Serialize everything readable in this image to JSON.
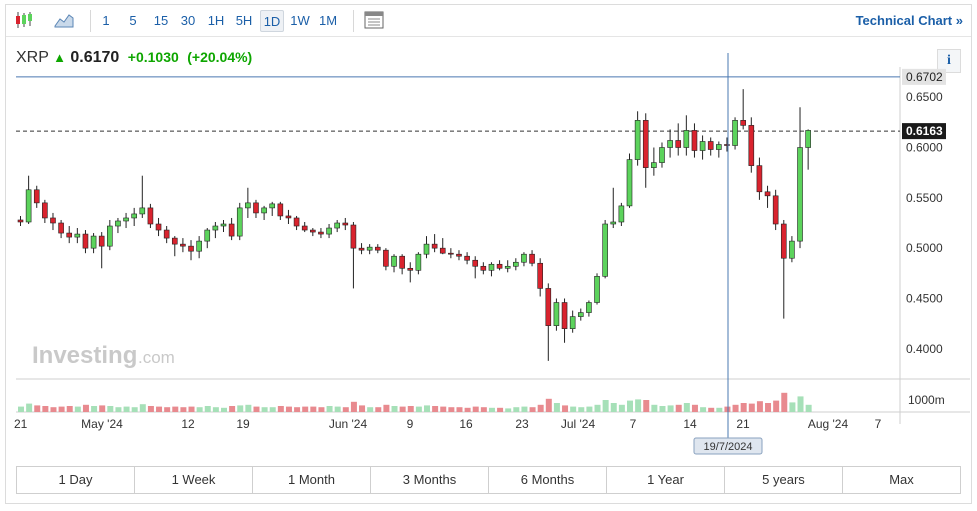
{
  "toolbar": {
    "intervals": [
      "1",
      "5",
      "15",
      "30",
      "1H",
      "5H",
      "1D",
      "1W",
      "1M"
    ],
    "selected": "1D",
    "technical_chart": "Technical Chart",
    "technical_chart_arrow": "»",
    "icons": [
      "candlestick-icon",
      "area-chart-icon",
      "template-icon"
    ]
  },
  "quote": {
    "symbol": "XRP",
    "price": "0.6170",
    "change": "+0.1030",
    "change_pct": "(+20.04%)",
    "up_color": "#0ea600",
    "info_label": "i"
  },
  "price_axis": {
    "ticks": [
      "0.6500",
      "0.6000",
      "0.5500",
      "0.5000",
      "0.4500",
      "0.4000"
    ],
    "hline_label": "0.6702",
    "current_label": "0.6163",
    "volume_label": "1000m"
  },
  "x_axis": {
    "labels": [
      "21",
      "May '24",
      "12",
      "19",
      "Jun '24",
      "9",
      "16",
      "23",
      "Jul '24",
      "7",
      "14",
      "21",
      "Aug '24",
      "7"
    ],
    "crosshair_label": "19/7/2024"
  },
  "watermark": "Investing",
  "watermark_suffix": ".com",
  "ranges": [
    "1 Day",
    "1 Week",
    "1 Month",
    "3 Months",
    "6 Months",
    "1 Year",
    "5 years",
    "Max"
  ],
  "colors": {
    "up": "#5cd35c",
    "down": "#d9232e",
    "vol_up": "#a6e0b8",
    "vol_down": "#e88a8f",
    "blue_line": "#4a78b0"
  },
  "chart_data": {
    "type": "candlestick",
    "ylim": [
      0.37,
      0.68
    ],
    "hline": 0.6702,
    "current": 0.6163,
    "candles": [
      [
        0.528,
        0.532,
        0.522,
        0.526
      ],
      [
        0.526,
        0.572,
        0.524,
        0.558
      ],
      [
        0.558,
        0.562,
        0.54,
        0.545
      ],
      [
        0.545,
        0.548,
        0.525,
        0.53
      ],
      [
        0.53,
        0.535,
        0.518,
        0.525
      ],
      [
        0.525,
        0.528,
        0.51,
        0.515
      ],
      [
        0.515,
        0.522,
        0.505,
        0.511
      ],
      [
        0.511,
        0.52,
        0.505,
        0.514
      ],
      [
        0.514,
        0.518,
        0.495,
        0.5
      ],
      [
        0.5,
        0.515,
        0.495,
        0.512
      ],
      [
        0.512,
        0.516,
        0.48,
        0.502
      ],
      [
        0.502,
        0.528,
        0.498,
        0.522
      ],
      [
        0.522,
        0.53,
        0.515,
        0.527
      ],
      [
        0.527,
        0.535,
        0.52,
        0.53
      ],
      [
        0.53,
        0.54,
        0.522,
        0.534
      ],
      [
        0.534,
        0.572,
        0.53,
        0.54
      ],
      [
        0.54,
        0.544,
        0.52,
        0.524
      ],
      [
        0.524,
        0.53,
        0.512,
        0.518
      ],
      [
        0.518,
        0.522,
        0.505,
        0.51
      ],
      [
        0.51,
        0.512,
        0.492,
        0.504
      ],
      [
        0.504,
        0.51,
        0.496,
        0.502
      ],
      [
        0.502,
        0.508,
        0.488,
        0.497
      ],
      [
        0.497,
        0.512,
        0.49,
        0.507
      ],
      [
        0.507,
        0.52,
        0.5,
        0.518
      ],
      [
        0.518,
        0.526,
        0.51,
        0.522
      ],
      [
        0.522,
        0.528,
        0.516,
        0.524
      ],
      [
        0.524,
        0.53,
        0.508,
        0.512
      ],
      [
        0.512,
        0.545,
        0.508,
        0.54
      ],
      [
        0.54,
        0.56,
        0.53,
        0.545
      ],
      [
        0.545,
        0.548,
        0.53,
        0.535
      ],
      [
        0.535,
        0.542,
        0.528,
        0.54
      ],
      [
        0.54,
        0.546,
        0.532,
        0.544
      ],
      [
        0.544,
        0.546,
        0.528,
        0.532
      ],
      [
        0.532,
        0.538,
        0.524,
        0.53
      ],
      [
        0.53,
        0.532,
        0.518,
        0.522
      ],
      [
        0.522,
        0.526,
        0.516,
        0.518
      ],
      [
        0.518,
        0.52,
        0.512,
        0.516
      ],
      [
        0.516,
        0.52,
        0.51,
        0.514
      ],
      [
        0.514,
        0.524,
        0.51,
        0.52
      ],
      [
        0.52,
        0.528,
        0.516,
        0.525
      ],
      [
        0.525,
        0.53,
        0.518,
        0.523
      ],
      [
        0.523,
        0.526,
        0.46,
        0.5
      ],
      [
        0.5,
        0.505,
        0.494,
        0.498
      ],
      [
        0.498,
        0.504,
        0.494,
        0.501
      ],
      [
        0.501,
        0.504,
        0.495,
        0.498
      ],
      [
        0.498,
        0.5,
        0.478,
        0.482
      ],
      [
        0.482,
        0.494,
        0.476,
        0.492
      ],
      [
        0.492,
        0.494,
        0.474,
        0.48
      ],
      [
        0.48,
        0.486,
        0.466,
        0.478
      ],
      [
        0.478,
        0.496,
        0.474,
        0.494
      ],
      [
        0.494,
        0.512,
        0.49,
        0.504
      ],
      [
        0.504,
        0.514,
        0.496,
        0.5
      ],
      [
        0.5,
        0.51,
        0.494,
        0.495
      ],
      [
        0.495,
        0.5,
        0.49,
        0.494
      ],
      [
        0.494,
        0.498,
        0.488,
        0.492
      ],
      [
        0.492,
        0.496,
        0.484,
        0.488
      ],
      [
        0.488,
        0.492,
        0.47,
        0.482
      ],
      [
        0.482,
        0.486,
        0.474,
        0.478
      ],
      [
        0.478,
        0.486,
        0.472,
        0.484
      ],
      [
        0.484,
        0.488,
        0.478,
        0.48
      ],
      [
        0.48,
        0.488,
        0.476,
        0.482
      ],
      [
        0.482,
        0.49,
        0.478,
        0.486
      ],
      [
        0.486,
        0.496,
        0.482,
        0.494
      ],
      [
        0.494,
        0.498,
        0.482,
        0.485
      ],
      [
        0.485,
        0.49,
        0.452,
        0.46
      ],
      [
        0.46,
        0.465,
        0.388,
        0.423
      ],
      [
        0.423,
        0.45,
        0.418,
        0.446
      ],
      [
        0.446,
        0.45,
        0.406,
        0.42
      ],
      [
        0.42,
        0.438,
        0.416,
        0.432
      ],
      [
        0.432,
        0.44,
        0.428,
        0.436
      ],
      [
        0.436,
        0.448,
        0.432,
        0.446
      ],
      [
        0.446,
        0.475,
        0.444,
        0.472
      ],
      [
        0.472,
        0.528,
        0.47,
        0.524
      ],
      [
        0.524,
        0.56,
        0.52,
        0.526
      ],
      [
        0.526,
        0.545,
        0.522,
        0.542
      ],
      [
        0.542,
        0.594,
        0.54,
        0.588
      ],
      [
        0.588,
        0.636,
        0.582,
        0.627
      ],
      [
        0.627,
        0.634,
        0.56,
        0.58
      ],
      [
        0.58,
        0.6,
        0.572,
        0.585
      ],
      [
        0.585,
        0.605,
        0.58,
        0.6
      ],
      [
        0.6,
        0.618,
        0.59,
        0.607
      ],
      [
        0.607,
        0.624,
        0.592,
        0.6
      ],
      [
        0.6,
        0.632,
        0.592,
        0.617
      ],
      [
        0.617,
        0.624,
        0.59,
        0.597
      ],
      [
        0.597,
        0.612,
        0.588,
        0.606
      ],
      [
        0.606,
        0.61,
        0.592,
        0.598
      ],
      [
        0.598,
        0.606,
        0.59,
        0.603
      ],
      [
        0.603,
        0.61,
        0.596,
        0.602
      ],
      [
        0.602,
        0.63,
        0.598,
        0.627
      ],
      [
        0.627,
        0.658,
        0.618,
        0.622
      ],
      [
        0.622,
        0.63,
        0.575,
        0.582
      ],
      [
        0.582,
        0.59,
        0.548,
        0.556
      ],
      [
        0.556,
        0.562,
        0.54,
        0.552
      ],
      [
        0.552,
        0.558,
        0.518,
        0.524
      ],
      [
        0.524,
        0.528,
        0.43,
        0.49
      ],
      [
        0.49,
        0.512,
        0.486,
        0.507
      ],
      [
        0.507,
        0.64,
        0.5,
        0.6
      ],
      [
        0.6,
        0.618,
        0.578,
        0.617
      ]
    ],
    "volumes": [
      [
        0.45,
        0
      ],
      [
        0.7,
        0
      ],
      [
        0.55,
        1
      ],
      [
        0.5,
        1
      ],
      [
        0.4,
        1
      ],
      [
        0.45,
        1
      ],
      [
        0.5,
        1
      ],
      [
        0.45,
        0
      ],
      [
        0.6,
        1
      ],
      [
        0.5,
        0
      ],
      [
        0.55,
        1
      ],
      [
        0.5,
        0
      ],
      [
        0.4,
        0
      ],
      [
        0.45,
        0
      ],
      [
        0.4,
        0
      ],
      [
        0.65,
        0
      ],
      [
        0.5,
        1
      ],
      [
        0.45,
        1
      ],
      [
        0.4,
        1
      ],
      [
        0.45,
        1
      ],
      [
        0.4,
        1
      ],
      [
        0.45,
        1
      ],
      [
        0.4,
        0
      ],
      [
        0.5,
        0
      ],
      [
        0.4,
        0
      ],
      [
        0.35,
        0
      ],
      [
        0.5,
        1
      ],
      [
        0.55,
        0
      ],
      [
        0.6,
        0
      ],
      [
        0.45,
        1
      ],
      [
        0.4,
        0
      ],
      [
        0.4,
        0
      ],
      [
        0.5,
        1
      ],
      [
        0.45,
        1
      ],
      [
        0.4,
        1
      ],
      [
        0.45,
        1
      ],
      [
        0.45,
        1
      ],
      [
        0.4,
        1
      ],
      [
        0.5,
        0
      ],
      [
        0.45,
        0
      ],
      [
        0.4,
        1
      ],
      [
        0.85,
        1
      ],
      [
        0.55,
        1
      ],
      [
        0.4,
        0
      ],
      [
        0.4,
        1
      ],
      [
        0.6,
        1
      ],
      [
        0.5,
        0
      ],
      [
        0.45,
        1
      ],
      [
        0.5,
        1
      ],
      [
        0.45,
        0
      ],
      [
        0.55,
        0
      ],
      [
        0.5,
        1
      ],
      [
        0.45,
        1
      ],
      [
        0.4,
        1
      ],
      [
        0.4,
        1
      ],
      [
        0.35,
        1
      ],
      [
        0.45,
        1
      ],
      [
        0.4,
        1
      ],
      [
        0.35,
        0
      ],
      [
        0.35,
        1
      ],
      [
        0.3,
        0
      ],
      [
        0.4,
        0
      ],
      [
        0.45,
        0
      ],
      [
        0.4,
        1
      ],
      [
        0.6,
        1
      ],
      [
        1.1,
        1
      ],
      [
        0.75,
        0
      ],
      [
        0.55,
        1
      ],
      [
        0.45,
        0
      ],
      [
        0.4,
        0
      ],
      [
        0.45,
        0
      ],
      [
        0.6,
        0
      ],
      [
        1.0,
        0
      ],
      [
        0.75,
        0
      ],
      [
        0.6,
        0
      ],
      [
        0.95,
        0
      ],
      [
        1.05,
        0
      ],
      [
        1.0,
        1
      ],
      [
        0.6,
        0
      ],
      [
        0.5,
        0
      ],
      [
        0.55,
        0
      ],
      [
        0.6,
        1
      ],
      [
        0.75,
        0
      ],
      [
        0.6,
        1
      ],
      [
        0.4,
        0
      ],
      [
        0.35,
        1
      ],
      [
        0.35,
        0
      ],
      [
        0.45,
        1
      ],
      [
        0.6,
        1
      ],
      [
        0.75,
        1
      ],
      [
        0.7,
        1
      ],
      [
        0.9,
        1
      ],
      [
        0.75,
        1
      ],
      [
        0.95,
        1
      ],
      [
        1.6,
        1
      ],
      [
        0.8,
        0
      ],
      [
        1.3,
        0
      ],
      [
        0.6,
        0
      ]
    ]
  }
}
